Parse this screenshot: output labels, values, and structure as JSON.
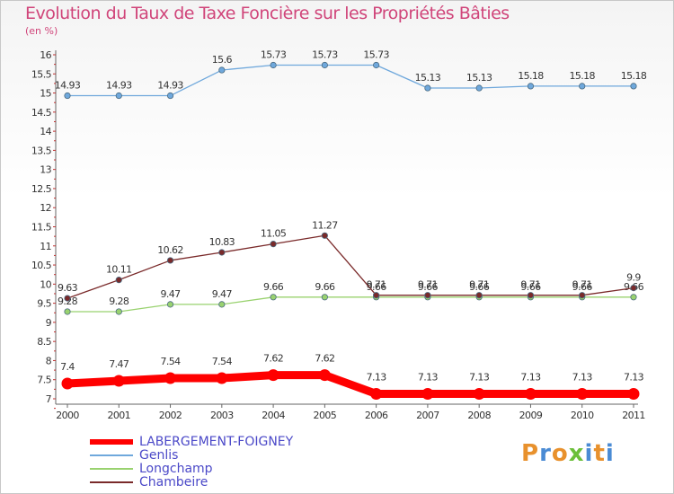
{
  "chart_data": {
    "type": "line",
    "title": "Evolution du Taux de Taxe Foncière sur les Propriétés Bâties",
    "ylabel": "(en %)",
    "xlabel": "",
    "categories": [
      "2000",
      "2001",
      "2002",
      "2003",
      "2004",
      "2005",
      "2006",
      "2007",
      "2008",
      "2009",
      "2010",
      "2011"
    ],
    "ylim": [
      7,
      16
    ],
    "yticks": [
      "7",
      "7.5",
      "8",
      "8.5",
      "9",
      "9.5",
      "10",
      "10.5",
      "11",
      "11.5",
      "12",
      "12.5",
      "13",
      "13.5",
      "14",
      "14.5",
      "15",
      "15.5",
      "16"
    ],
    "grid": false,
    "series": [
      {
        "name": "LABERGEMENT-FOIGNEY",
        "color": "#ff0000",
        "values": [
          7.4,
          7.47,
          7.54,
          7.54,
          7.62,
          7.62,
          7.13,
          7.13,
          7.13,
          7.13,
          7.13,
          7.13
        ],
        "labels": [
          "7.4",
          "7.47",
          "7.54",
          "7.54",
          "7.62",
          "7.62",
          "7.13",
          "7.13",
          "7.13",
          "7.13",
          "7.13",
          "7.13"
        ]
      },
      {
        "name": "Genlis",
        "color": "#6fa8dc",
        "values": [
          14.93,
          14.93,
          14.93,
          15.6,
          15.73,
          15.73,
          15.73,
          15.13,
          15.13,
          15.18,
          15.18,
          15.18
        ],
        "labels": [
          "14.93",
          "14.93",
          "14.93",
          "15.6",
          "15.73",
          "15.73",
          "15.73",
          "15.13",
          "15.13",
          "15.18",
          "15.18",
          "15.18"
        ]
      },
      {
        "name": "Longchamp",
        "color": "#99d26f",
        "values": [
          9.28,
          9.28,
          9.47,
          9.47,
          9.66,
          9.66,
          9.66,
          9.66,
          9.66,
          9.66,
          9.66,
          9.66
        ],
        "labels": [
          "9.28",
          "9.28",
          "9.47",
          "9.47",
          "9.66",
          "9.66",
          "9.66",
          "9.66",
          "9.66",
          "9.66",
          "9.66",
          "9.66"
        ]
      },
      {
        "name": "Chambeire",
        "color": "#7a2a2a",
        "values": [
          9.63,
          10.11,
          10.62,
          10.83,
          11.05,
          11.27,
          9.71,
          9.71,
          9.71,
          9.71,
          9.71,
          9.9
        ],
        "labels": [
          "9.63",
          "10.11",
          "10.62",
          "10.83",
          "11.05",
          "11.27",
          "9.71",
          "9.71",
          "9.71",
          "9.71",
          "9.71",
          "9.9"
        ]
      }
    ],
    "legend": "bottom-left"
  },
  "logo": {
    "text": "Proxiti"
  }
}
